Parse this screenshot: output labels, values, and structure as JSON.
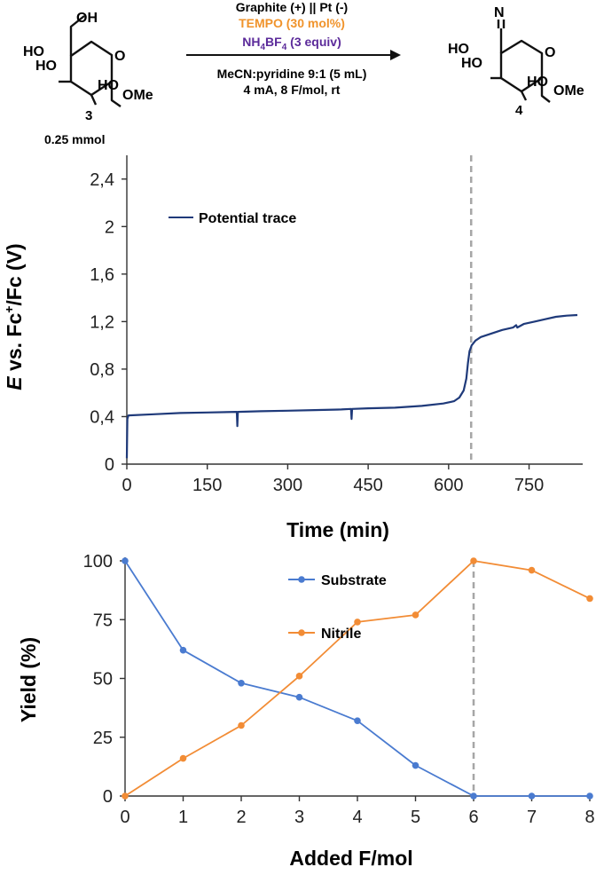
{
  "scheme": {
    "reactant_label": "3",
    "reactant_amount": "0.25 mmol",
    "product_label": "4",
    "reactant_groups": {
      "oh1": "OH",
      "ho1": "HO",
      "ho2": "HO",
      "ho3": "HO",
      "ome": "OMe",
      "ring_o": "O"
    },
    "product_groups": {
      "n": "N",
      "ho1": "HO",
      "ho2": "HO",
      "ho3": "HO",
      "ome": "OMe",
      "ring_o": "O"
    },
    "conditions": {
      "electrodes": "Graphite (+) || Pt (-)",
      "tempo": "TEMPO (30 mol%)",
      "salt_prefix": "NH",
      "salt_sub1": "4",
      "salt_mid": "BF",
      "salt_sub2": "4",
      "salt_suffix": " (3 equiv)",
      "solvent": "MeCN:pyridine 9:1 (5 mL)",
      "params": "4 mA, 8 F/mol, rt"
    },
    "colors": {
      "tempo": "#f0932b",
      "salt": "#5b2a9a",
      "text": "#111111"
    }
  },
  "chart_data": [
    {
      "type": "line",
      "title": "",
      "xlabel": "Time (min)",
      "ylabel_parts": {
        "e": "E",
        "vs": " vs. Fc",
        "sup": "+",
        "rest": "/Fc (V)"
      },
      "xlim": [
        0,
        850
      ],
      "ylim": [
        0,
        2.6
      ],
      "xticks": [
        0,
        150,
        300,
        450,
        600,
        750
      ],
      "yticks": [
        0,
        0.4,
        0.8,
        1.2,
        1.6,
        2.0,
        2.4
      ],
      "ytick_labels": [
        "0",
        "0,4",
        "0,8",
        "1,2",
        "1,6",
        "2",
        "2,4"
      ],
      "vline_x": 642,
      "legend": "top-left",
      "series": [
        {
          "name": "Potential trace",
          "color": "#1f3a7a",
          "points": [
            [
              0,
              0.05
            ],
            [
              1,
              0.38
            ],
            [
              3,
              0.41
            ],
            [
              50,
              0.42
            ],
            [
              100,
              0.43
            ],
            [
              150,
              0.435
            ],
            [
              205,
              0.44
            ],
            [
              206,
              0.32
            ],
            [
              207,
              0.44
            ],
            [
              250,
              0.445
            ],
            [
              300,
              0.45
            ],
            [
              350,
              0.455
            ],
            [
              400,
              0.46
            ],
            [
              418,
              0.465
            ],
            [
              419,
              0.38
            ],
            [
              420,
              0.465
            ],
            [
              450,
              0.47
            ],
            [
              500,
              0.475
            ],
            [
              550,
              0.49
            ],
            [
              590,
              0.51
            ],
            [
              610,
              0.53
            ],
            [
              620,
              0.56
            ],
            [
              628,
              0.62
            ],
            [
              633,
              0.72
            ],
            [
              636,
              0.85
            ],
            [
              639,
              0.95
            ],
            [
              643,
              1.0
            ],
            [
              650,
              1.04
            ],
            [
              660,
              1.07
            ],
            [
              680,
              1.1
            ],
            [
              700,
              1.13
            ],
            [
              720,
              1.15
            ],
            [
              726,
              1.17
            ],
            [
              728,
              1.15
            ],
            [
              740,
              1.18
            ],
            [
              760,
              1.2
            ],
            [
              780,
              1.22
            ],
            [
              800,
              1.24
            ],
            [
              820,
              1.25
            ],
            [
              840,
              1.255
            ]
          ]
        }
      ]
    },
    {
      "type": "line",
      "title": "",
      "xlabel": "Added F/mol",
      "ylabel": "Yield (%)",
      "xlim": [
        0,
        8
      ],
      "ylim": [
        0,
        100
      ],
      "xticks": [
        0,
        1,
        2,
        3,
        4,
        5,
        6,
        7,
        8
      ],
      "yticks": [
        0,
        25,
        50,
        75,
        100
      ],
      "vline_x": 6,
      "categories": [
        0,
        1,
        2,
        3,
        4,
        5,
        6,
        7,
        8
      ],
      "series": [
        {
          "name": "Substrate",
          "color": "#4a7bd0",
          "values": [
            100,
            62,
            48,
            42,
            32,
            13,
            0,
            0,
            0
          ]
        },
        {
          "name": "Nitrile",
          "color": "#f28c35",
          "values": [
            0,
            16,
            30,
            51,
            74,
            77,
            100,
            96,
            84
          ]
        }
      ]
    }
  ]
}
